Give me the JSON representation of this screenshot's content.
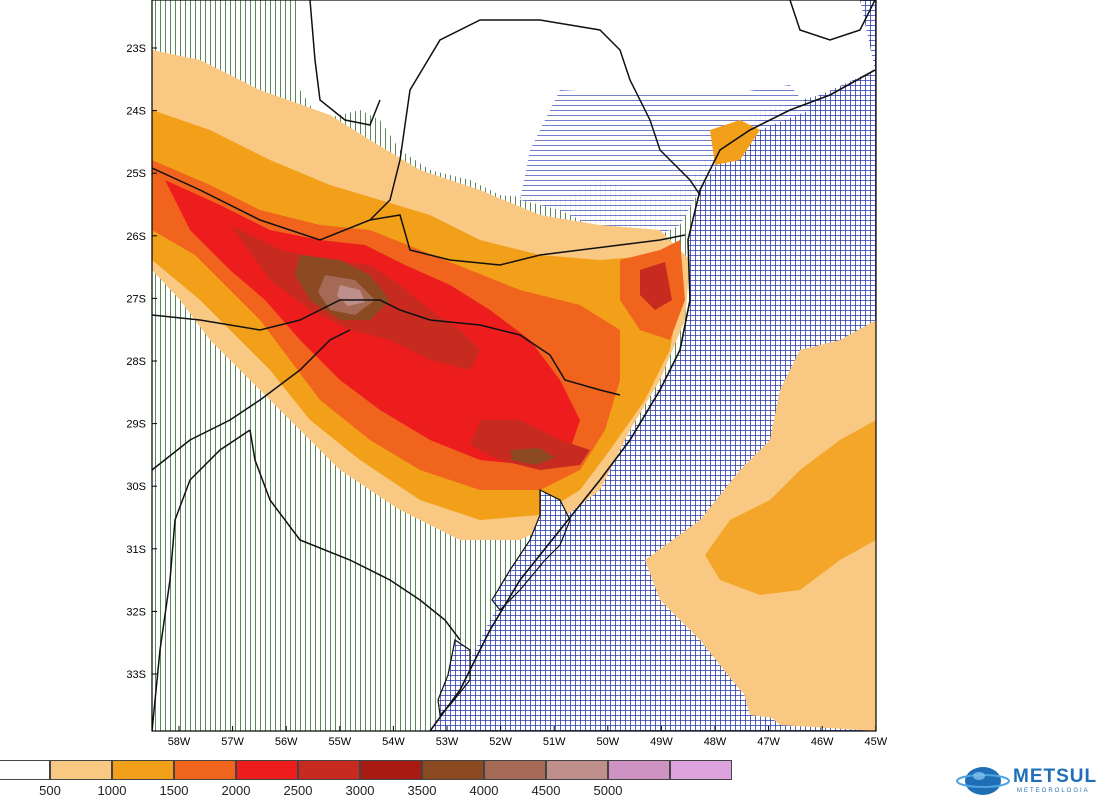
{
  "map": {
    "lat_labels": [
      "23S",
      "24S",
      "25S",
      "26S",
      "27S",
      "28S",
      "29S",
      "30S",
      "31S",
      "32S",
      "33S"
    ],
    "lon_labels": [
      "58W",
      "57W",
      "56W",
      "55W",
      "54W",
      "53W",
      "52W",
      "51W",
      "50W",
      "49W",
      "48W",
      "47W",
      "46W",
      "45W"
    ],
    "lon_range": [
      -58.5,
      -45
    ],
    "lat_range": [
      -22.3,
      -33.9
    ],
    "ocean_hatch_color": "#2a3aa8",
    "land_hatch_color": "#2f6b2f"
  },
  "legend": {
    "bins": [
      {
        "color": "#ffffff"
      },
      {
        "color": "#f9c983"
      },
      {
        "color": "#f2a01a"
      },
      {
        "color": "#f0641e"
      },
      {
        "color": "#ee1d1d"
      },
      {
        "color": "#c72a1e"
      },
      {
        "color": "#a81b12"
      },
      {
        "color": "#8b4a22"
      },
      {
        "color": "#a56a55"
      },
      {
        "color": "#bf8f8c"
      },
      {
        "color": "#cf93c3"
      },
      {
        "color": "#dda3de"
      }
    ],
    "labels": [
      "500",
      "1000",
      "1500",
      "2000",
      "2500",
      "3000",
      "3500",
      "4000",
      "4500",
      "5000"
    ]
  },
  "brand": {
    "name": "METSUL",
    "subtitle": "METEOROLOGIA",
    "color": "#1f6fb6"
  }
}
